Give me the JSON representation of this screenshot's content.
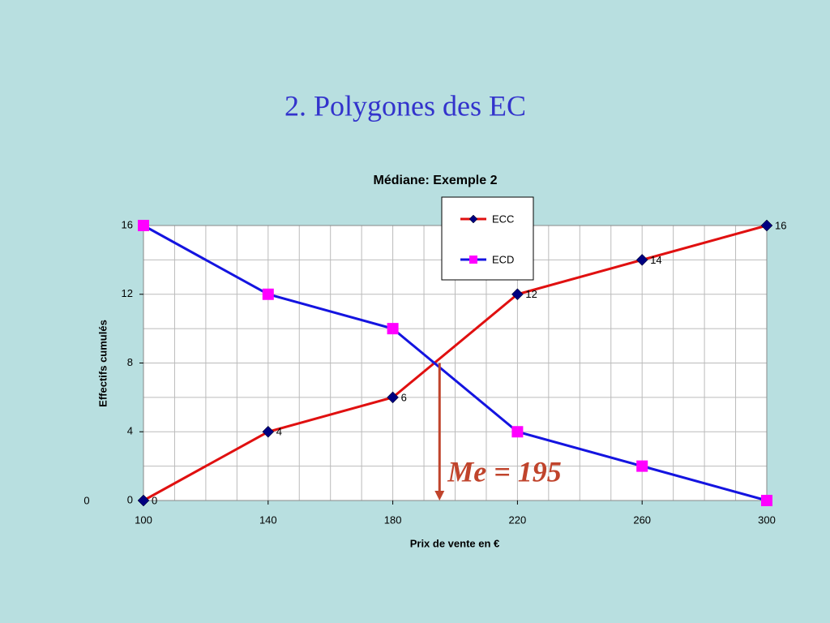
{
  "slide_title": "2. Polygones des EC",
  "chart_data": {
    "type": "line",
    "title": "Médiane: Exemple 2",
    "x_label": "Prix de vente en €",
    "y_label": "Effectifs cumulés",
    "x": [
      100,
      140,
      180,
      220,
      260,
      300
    ],
    "xlim": [
      100,
      300
    ],
    "xticks": [
      100,
      140,
      180,
      220,
      260,
      300
    ],
    "ylim": [
      0,
      16
    ],
    "yticks": [
      0,
      4,
      8,
      12,
      16
    ],
    "grid": true,
    "xgrid": [
      100,
      110,
      120,
      130,
      140,
      150,
      160,
      170,
      180,
      190,
      200,
      210,
      220,
      230,
      240,
      250,
      260,
      270,
      280,
      290,
      300
    ],
    "ygrid": [
      0,
      2,
      4,
      6,
      8,
      10,
      12,
      14,
      16
    ],
    "legend": "top",
    "series": [
      {
        "name": "ECC",
        "color": "#e01010",
        "marker": "diamond",
        "marker_color": "#000080",
        "values": [
          0,
          4,
          6,
          12,
          14,
          16
        ],
        "show_labels": true
      },
      {
        "name": "ECD",
        "color": "#1414e0",
        "marker": "square",
        "marker_color": "#ff00ff",
        "values": [
          16,
          12,
          10,
          4,
          2,
          0
        ],
        "show_labels": false
      }
    ],
    "annotations": [
      {
        "text": "Me = 195",
        "x": 195,
        "y": 8,
        "color": "#c0442c"
      }
    ],
    "stray_label": "0"
  }
}
